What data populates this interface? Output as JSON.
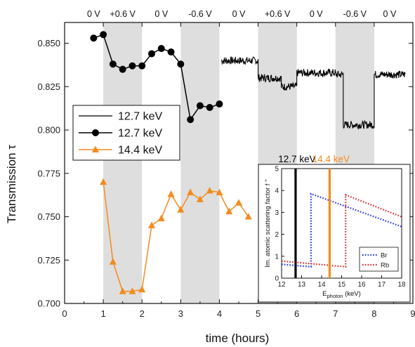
{
  "chart_data": {
    "type": "line",
    "xlabel": "time (hours)",
    "ylabel": "Transmission τ",
    "xlim": [
      0,
      9
    ],
    "ylim": [
      0.7,
      0.862
    ],
    "xticks": [
      "0",
      "1",
      "2",
      "3",
      "4",
      "5",
      "6",
      "7",
      "8",
      "9"
    ],
    "yticks": [
      "0.700",
      "0.725",
      "0.750",
      "0.775",
      "0.800",
      "0.825",
      "0.850"
    ],
    "xtick_values": [
      0,
      1,
      2,
      3,
      4,
      5,
      6,
      7,
      8,
      9
    ],
    "ytick_values": [
      0.7,
      0.725,
      0.75,
      0.775,
      0.8,
      0.825,
      0.85
    ],
    "voltage_phases": [
      {
        "label": "0 V",
        "start": 0.5,
        "end": 1.0,
        "shaded": false
      },
      {
        "label": "+0.6 V",
        "start": 1.0,
        "end": 2.0,
        "shaded": true
      },
      {
        "label": "0 V",
        "start": 2.0,
        "end": 3.0,
        "shaded": false
      },
      {
        "label": "-0.6 V",
        "start": 3.0,
        "end": 4.0,
        "shaded": true
      },
      {
        "label": "0 V",
        "start": 4.0,
        "end": 5.0,
        "shaded": false
      },
      {
        "label": "+0.6 V",
        "start": 5.0,
        "end": 6.0,
        "shaded": true
      },
      {
        "label": "0 V",
        "start": 6.0,
        "end": 7.0,
        "shaded": false
      },
      {
        "label": "-0.6 V",
        "start": 7.0,
        "end": 8.0,
        "shaded": true
      },
      {
        "label": "0 V",
        "start": 8.0,
        "end": 8.8,
        "shaded": false
      }
    ],
    "series": [
      {
        "name": "12.7 keV",
        "style": "line",
        "color": "#000000",
        "segments": [
          {
            "from": 4.05,
            "to": 5.0,
            "level": 0.84
          },
          {
            "from": 5.0,
            "to": 5.6,
            "level": 0.83
          },
          {
            "from": 5.6,
            "to": 6.0,
            "level": 0.825
          },
          {
            "from": 6.0,
            "to": 7.0,
            "level": 0.833
          },
          {
            "from": 7.0,
            "to": 7.2,
            "level": 0.832
          },
          {
            "from": 7.2,
            "to": 8.0,
            "level": 0.803
          },
          {
            "from": 8.0,
            "to": 8.8,
            "level": 0.832
          }
        ]
      },
      {
        "name": "12.7 keV",
        "style": "line+circle",
        "color": "#000000",
        "x": [
          0.75,
          1.0,
          1.25,
          1.5,
          1.75,
          2.0,
          2.25,
          2.5,
          2.75,
          3.0,
          3.25,
          3.5,
          3.75,
          4.0
        ],
        "y": [
          0.853,
          0.855,
          0.838,
          0.835,
          0.837,
          0.837,
          0.844,
          0.847,
          0.845,
          0.838,
          0.806,
          0.814,
          0.813,
          0.815
        ]
      },
      {
        "name": "14.4 keV",
        "style": "line+triangle",
        "color": "#f28c1e",
        "x": [
          1.0,
          1.25,
          1.5,
          1.75,
          2.0,
          2.25,
          2.5,
          2.75,
          3.0,
          3.25,
          3.5,
          3.75,
          4.0,
          4.25,
          4.5,
          4.75
        ],
        "y": [
          0.77,
          0.724,
          0.707,
          0.707,
          0.708,
          0.745,
          0.749,
          0.763,
          0.754,
          0.764,
          0.76,
          0.765,
          0.764,
          0.753,
          0.758,
          0.75
        ]
      }
    ],
    "legend": {
      "position": "middle-left",
      "entries": [
        "12.7 keV",
        "12.7 keV",
        "14.4 keV"
      ]
    },
    "inset": {
      "type": "line",
      "xlabel": "E",
      "xlabel_sub": "photon",
      "xlabel_unit": " (keV)",
      "ylabel": "Im. atomic scattering factor f ''",
      "xlim": [
        12,
        18
      ],
      "ylim": [
        0,
        5
      ],
      "xticks": [
        "12",
        "13",
        "14",
        "15",
        "16",
        "17",
        "18"
      ],
      "yticks": [
        "0",
        "1",
        "2",
        "3",
        "4",
        "5"
      ],
      "xtick_values": [
        12,
        13,
        14,
        15,
        16,
        17,
        18
      ],
      "ytick_values": [
        0,
        1,
        2,
        3,
        4,
        5
      ],
      "markers": [
        {
          "label": "12.7 keV",
          "x": 12.7,
          "color": "#000000"
        },
        {
          "label": "14.4 keV",
          "x": 14.4,
          "color": "#f28c1e"
        }
      ],
      "series": [
        {
          "name": "Br",
          "color": "#2233ee",
          "x": [
            12.0,
            13.47,
            13.47,
            18.0
          ],
          "y": [
            0.63,
            0.52,
            3.85,
            2.35
          ]
        },
        {
          "name": "Rb",
          "color": "#e62222",
          "x": [
            12.0,
            15.2,
            15.2,
            18.0
          ],
          "y": [
            0.78,
            0.52,
            3.8,
            2.8
          ]
        }
      ],
      "legend": {
        "position": "bottom-right",
        "entries": [
          "Br",
          "Rb"
        ]
      }
    }
  }
}
